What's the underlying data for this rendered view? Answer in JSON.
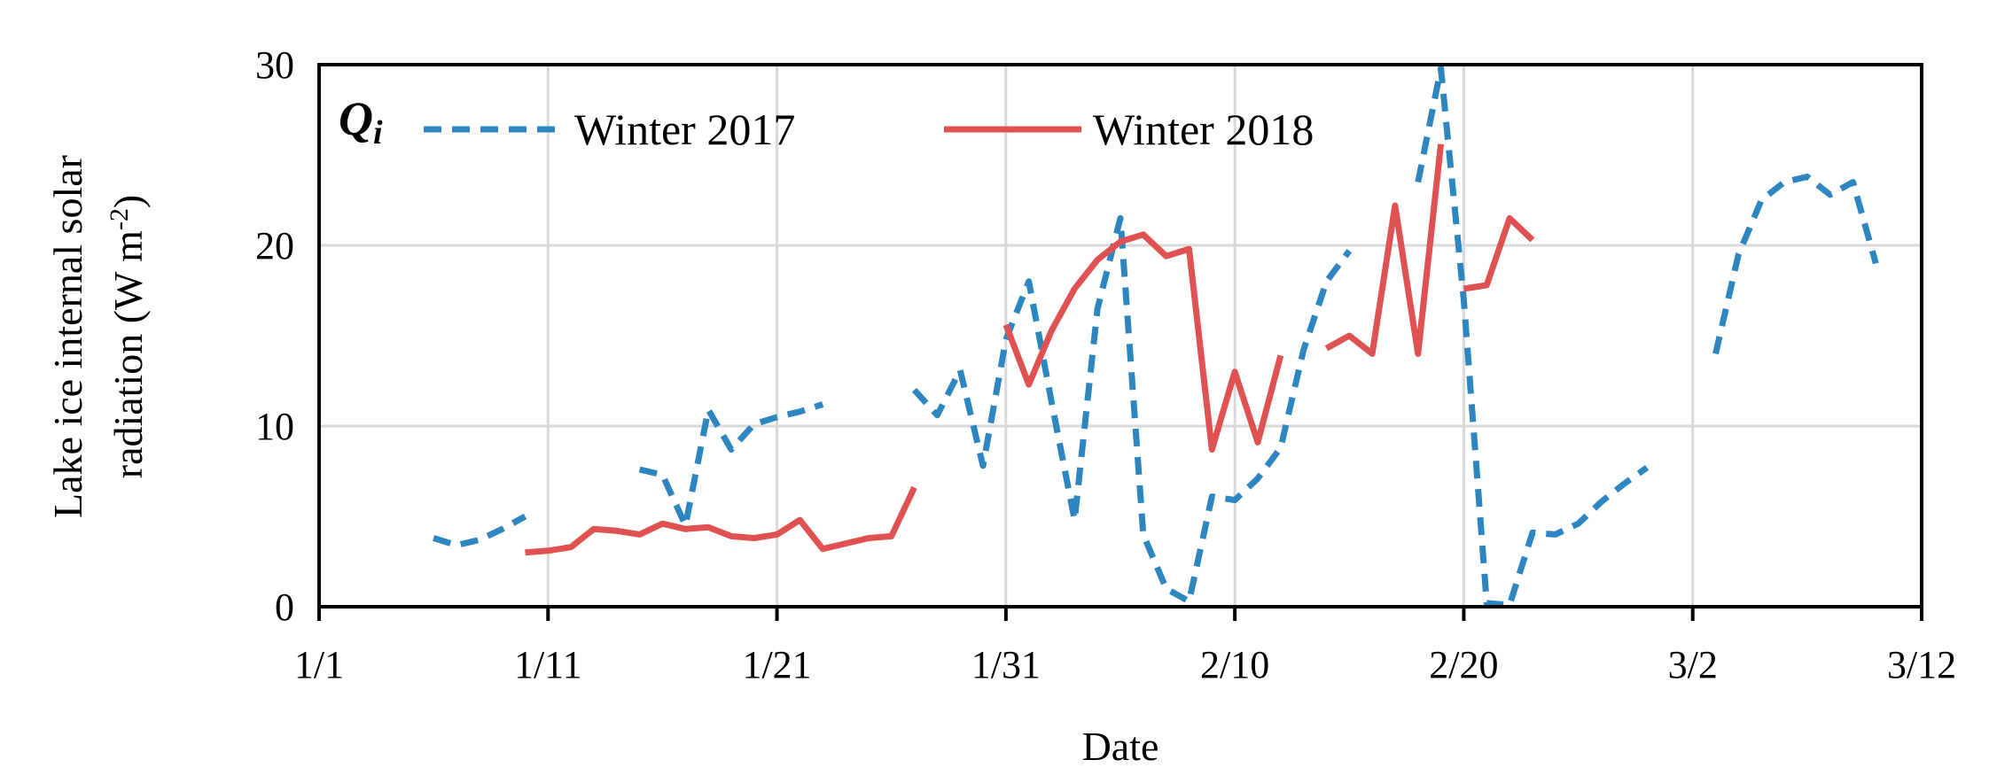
{
  "chart_data": {
    "type": "line",
    "panel_label": "Q",
    "panel_label_sub": "i",
    "xlabel": "Date",
    "ylabel_line1": "Lake ice internal solar",
    "ylabel_line2": "radiation (W m",
    "ylabel_sup": "-2",
    "ylabel_close": ")",
    "ylim": [
      0,
      30
    ],
    "yticks": [
      0,
      10,
      20,
      30
    ],
    "xlim": [
      0,
      70
    ],
    "xticks": [
      {
        "day": 0,
        "label": "1/1"
      },
      {
        "day": 10,
        "label": "1/11"
      },
      {
        "day": 20,
        "label": "1/21"
      },
      {
        "day": 30,
        "label": "1/31"
      },
      {
        "day": 40,
        "label": "2/10"
      },
      {
        "day": 50,
        "label": "2/20"
      },
      {
        "day": 60,
        "label": "3/2"
      },
      {
        "day": 70,
        "label": "3/12"
      }
    ],
    "grid": true,
    "legend_position": "top",
    "colors": {
      "winter2017": "#2e86c1",
      "winter2018": "#e05252"
    },
    "series": [
      {
        "name": "Winter 2017",
        "style": "dashed",
        "segments": [
          [
            [
              5,
              3.8
            ],
            [
              6,
              3.4
            ],
            [
              7,
              3.7
            ],
            [
              8,
              4.3
            ],
            [
              9,
              5.0
            ]
          ],
          [
            [
              14,
              7.6
            ],
            [
              15,
              7.3
            ],
            [
              16,
              4.5
            ],
            [
              17,
              10.9
            ],
            [
              18,
              8.7
            ],
            [
              19,
              10.1
            ],
            [
              20,
              10.5
            ],
            [
              21,
              10.8
            ],
            [
              22,
              11.2
            ]
          ],
          [
            [
              26,
              12.0
            ],
            [
              27,
              10.6
            ],
            [
              28,
              13.1
            ],
            [
              29,
              7.8
            ],
            [
              30,
              14.8
            ],
            [
              31,
              18.0
            ],
            [
              32,
              11.3
            ],
            [
              33,
              4.8
            ],
            [
              34,
              16.5
            ],
            [
              35,
              21.5
            ],
            [
              36,
              4.0
            ],
            [
              37,
              1.0
            ],
            [
              38,
              0.3
            ],
            [
              39,
              6.1
            ],
            [
              40,
              5.9
            ],
            [
              41,
              7.1
            ],
            [
              42,
              8.8
            ],
            [
              43,
              14.2
            ],
            [
              44,
              18.0
            ],
            [
              45,
              19.7
            ]
          ],
          [
            [
              48,
              23.5
            ],
            [
              49,
              29.8
            ],
            [
              50,
              17.0
            ],
            [
              51,
              0.2
            ],
            [
              52,
              0.1
            ],
            [
              53,
              4.1
            ],
            [
              54,
              4.0
            ],
            [
              55,
              4.6
            ],
            [
              56,
              5.8
            ],
            [
              57,
              6.8
            ],
            [
              58,
              7.7
            ]
          ],
          [
            [
              61,
              14.0
            ],
            [
              62,
              19.5
            ],
            [
              63,
              22.5
            ],
            [
              64,
              23.5
            ],
            [
              65,
              23.8
            ],
            [
              66,
              22.8
            ],
            [
              67,
              23.5
            ],
            [
              68,
              19.0
            ]
          ]
        ]
      },
      {
        "name": "Winter 2018",
        "style": "solid",
        "segments": [
          [
            [
              9,
              3.0
            ],
            [
              10,
              3.1
            ],
            [
              11,
              3.3
            ],
            [
              12,
              4.3
            ],
            [
              13,
              4.2
            ],
            [
              14,
              4.0
            ],
            [
              15,
              4.6
            ],
            [
              16,
              4.3
            ],
            [
              17,
              4.4
            ],
            [
              18,
              3.9
            ],
            [
              19,
              3.8
            ],
            [
              20,
              4.0
            ],
            [
              21,
              4.8
            ],
            [
              22,
              3.2
            ],
            [
              23,
              3.5
            ],
            [
              24,
              3.8
            ],
            [
              25,
              3.9
            ],
            [
              26,
              6.6
            ]
          ],
          [
            [
              30,
              15.6
            ],
            [
              31,
              12.3
            ],
            [
              32,
              15.3
            ],
            [
              33,
              17.6
            ],
            [
              34,
              19.2
            ],
            [
              35,
              20.2
            ],
            [
              36,
              20.6
            ],
            [
              37,
              19.4
            ],
            [
              38,
              19.8
            ],
            [
              39,
              8.7
            ],
            [
              40,
              13.0
            ],
            [
              41,
              9.1
            ],
            [
              42,
              13.9
            ]
          ],
          [
            [
              44,
              14.3
            ],
            [
              45,
              15.0
            ],
            [
              46,
              14.0
            ],
            [
              47,
              22.2
            ],
            [
              48,
              14.0
            ],
            [
              49,
              25.6
            ]
          ],
          [
            [
              50,
              17.6
            ],
            [
              51,
              17.8
            ],
            [
              52,
              21.5
            ],
            [
              53,
              20.3
            ]
          ]
        ]
      }
    ]
  }
}
